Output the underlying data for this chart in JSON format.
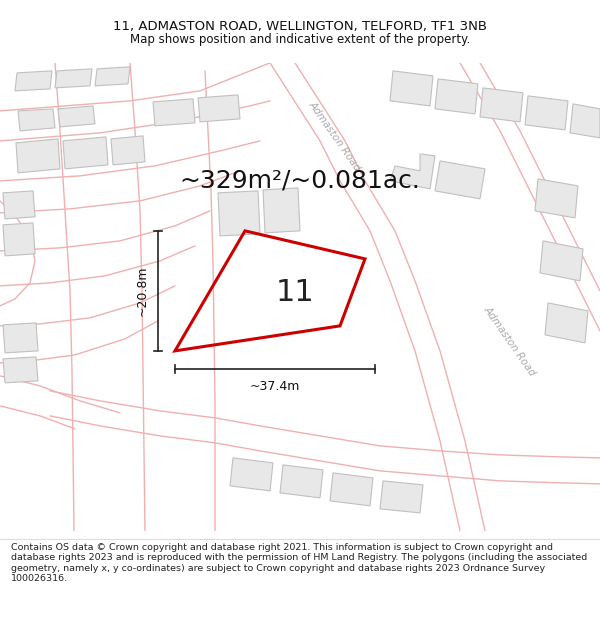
{
  "title_line1": "11, ADMASTON ROAD, WELLINGTON, TELFORD, TF1 3NB",
  "title_line2": "Map shows position and indicative extent of the property.",
  "area_text": "~329m²/~0.081ac.",
  "number_label": "11",
  "dim_width": "~37.4m",
  "dim_height": "~20.8m",
  "road_label_top": "Admaston Road",
  "road_label_right": "Admaston Road",
  "footer_text": "Contains OS data © Crown copyright and database right 2021. This information is subject to Crown copyright and database rights 2023 and is reproduced with the permission of HM Land Registry. The polygons (including the associated geometry, namely x, y co-ordinates) are subject to Crown copyright and database rights 2023 Ordnance Survey 100026316.",
  "map_bg": "#ffffff",
  "plot_color": "#cc0000",
  "road_color": "#f0b0b0",
  "road_gray_color": "#c8c8c8",
  "building_fill": "#e8e8e8",
  "building_edge": "#c0c0c0",
  "title_fontsize": 9.5,
  "subtitle_fontsize": 8.5,
  "area_fontsize": 18,
  "footer_fontsize": 6.8,
  "dim_fontsize": 9
}
